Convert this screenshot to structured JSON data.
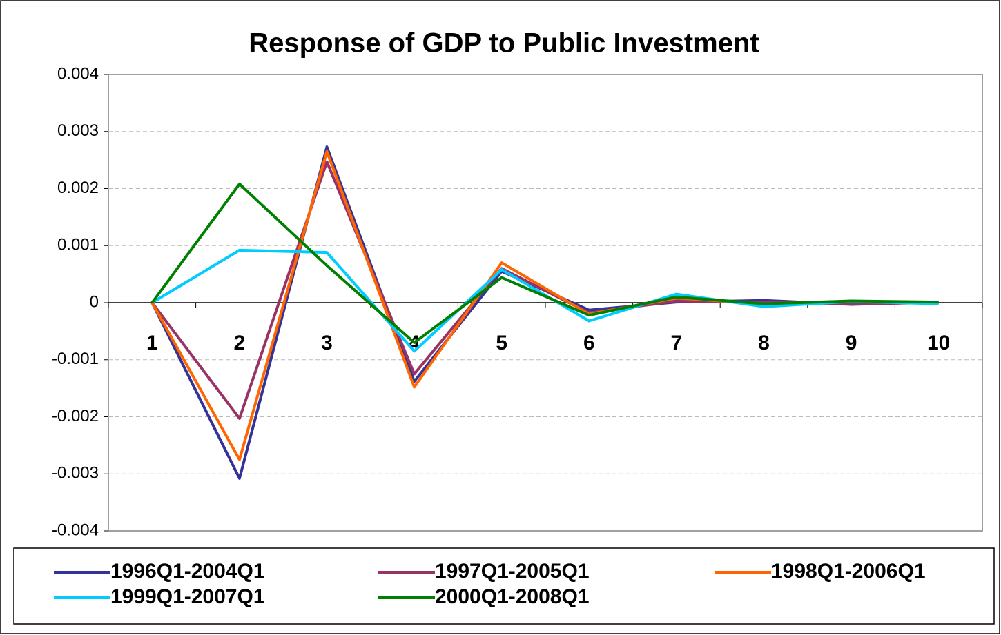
{
  "chart_data": {
    "type": "line",
    "title": "Response of GDP to Public Investment",
    "categories": [
      "1",
      "2",
      "3",
      "4",
      "5",
      "6",
      "7",
      "8",
      "9",
      "10"
    ],
    "series": [
      {
        "name": "1996Q1-2004Q1",
        "color": "#333399",
        "values": [
          0,
          -0.00308,
          0.00273,
          -0.00138,
          0.00055,
          -0.00013,
          1e-05,
          4e-05,
          -3e-05,
          1e-05
        ]
      },
      {
        "name": "1997Q1-2005Q1",
        "color": "#993366",
        "values": [
          0,
          -0.00203,
          0.00247,
          -0.00125,
          0.0006,
          -0.00018,
          3e-05,
          1e-05,
          -2e-05,
          0
        ]
      },
      {
        "name": "1998Q1-2006Q1",
        "color": "#ff6600",
        "values": [
          0,
          -0.00275,
          0.00265,
          -0.00148,
          0.0007,
          -0.0002,
          8e-05,
          -2e-05,
          2e-05,
          0
        ]
      },
      {
        "name": "1999Q1-2007Q1",
        "color": "#00ccff",
        "values": [
          0,
          0.00092,
          0.00088,
          -0.00085,
          0.00058,
          -0.00032,
          0.00015,
          -7e-05,
          2e-05,
          -2e-05
        ]
      },
      {
        "name": "2000Q1-2008Q1",
        "color": "#008000",
        "values": [
          0,
          0.00208,
          0.00065,
          -0.0007,
          0.00044,
          -0.00022,
          0.0001,
          -2e-05,
          3e-05,
          1e-05
        ]
      }
    ],
    "ylim": [
      -0.004,
      0.004
    ],
    "yticks": [
      -0.004,
      -0.003,
      -0.002,
      -0.001,
      0,
      0.001,
      0.002,
      0.003,
      0.004
    ],
    "grid": true,
    "legend": "bottom"
  }
}
